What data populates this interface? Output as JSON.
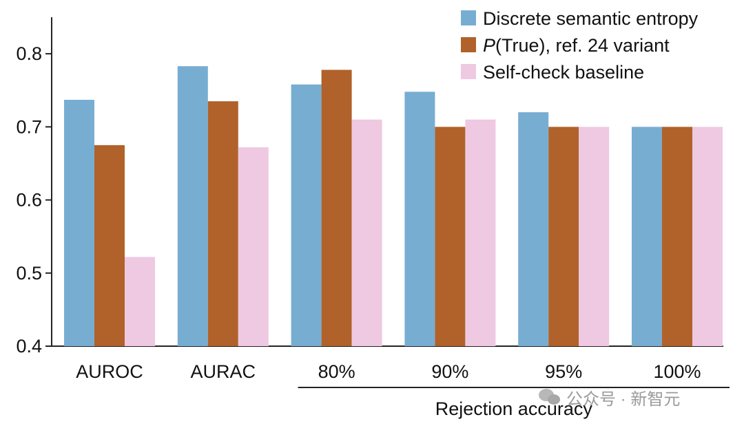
{
  "chart_data": {
    "type": "bar",
    "categories": [
      "AUROC",
      "AURAC",
      "80%",
      "90%",
      "95%",
      "100%"
    ],
    "series": [
      {
        "name": "Discrete semantic entropy",
        "color": "#78add2",
        "values": [
          0.737,
          0.783,
          0.758,
          0.748,
          0.72,
          0.7
        ]
      },
      {
        "name": "P(True), ref. 24 variant",
        "name_italic": "P",
        "name_rest": "(True), ref. 24 variant",
        "color": "#b0622a",
        "values": [
          0.675,
          0.735,
          0.778,
          0.7,
          0.7,
          0.7
        ]
      },
      {
        "name": "Self-check baseline",
        "color": "#eec9e1",
        "values": [
          0.522,
          0.672,
          0.71,
          0.71,
          0.7,
          0.7
        ]
      }
    ],
    "ylim": [
      0.4,
      0.85
    ],
    "yticks": [
      "0.4",
      "0.5",
      "0.6",
      "0.7",
      "0.8"
    ],
    "group_label": "Rejection accuracy",
    "group_range": [
      "80%",
      "100%"
    ],
    "legend_position": "top-right",
    "grid": false
  },
  "watermark": {
    "icon": "wechat-icon",
    "text": "公众号 · 新智元"
  }
}
